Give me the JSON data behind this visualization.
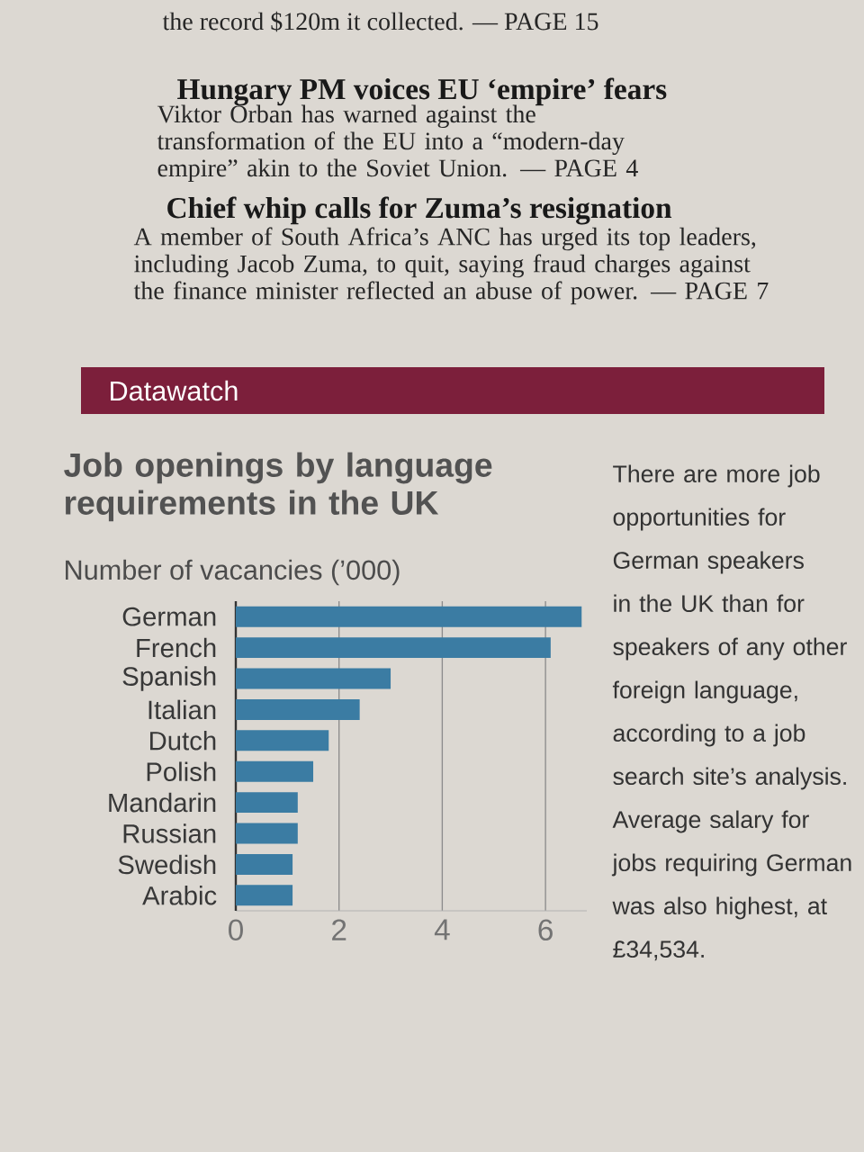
{
  "chart_data": {
    "type": "bar",
    "orientation": "horizontal",
    "title": "Job openings by language requirements in the UK",
    "subtitle": "Number of vacancies (’000)",
    "categories": [
      "German",
      "French",
      "Spanish",
      "Italian",
      "Dutch",
      "Polish",
      "Mandarin",
      "Russian",
      "Swedish",
      "Arabic"
    ],
    "values": [
      6.7,
      6.1,
      3.0,
      2.4,
      1.8,
      1.5,
      1.2,
      1.2,
      1.1,
      1.1
    ],
    "color": "#3b7ca3",
    "xlim": [
      0,
      6.8
    ],
    "xticks": [
      0,
      2,
      4,
      6
    ],
    "grid": "x",
    "annotations": [
      "the record $120m it collected. — PAGE 15",
      "Hungary PM voices EU ‘empire’ fears",
      "Viktor Orban has warned against the transformation of the EU into a “modern-day empire” akin to the Soviet Union. — PAGE 4",
      "Chief whip calls for Zuma’s resignation",
      "A member of South Africa’s ANC has urged its top leaders, including Jacob Zuma, to quit, saying fraud charges against the finance minister reflected an abuse of power. — PAGE 7",
      "Datawatch",
      "There are more job opportunities for German speakers in the UK than for speakers of any other foreign language, according to a job search site’s analysis. Average salary for jobs requiring German was also highest, at £34,534."
    ]
  }
}
